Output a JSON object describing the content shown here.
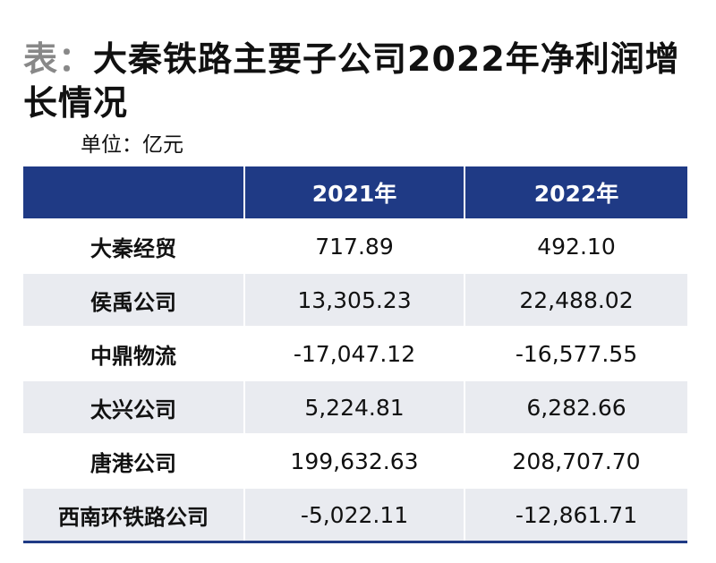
{
  "title": {
    "prefix": "表：",
    "text": "大秦铁路主要子公司2022年净利润增长情况"
  },
  "unit": "单位：亿元",
  "table": {
    "headers": [
      "",
      "2021年",
      "2022年"
    ],
    "rows": [
      {
        "name": "大秦经贸",
        "y2021": "717.89",
        "y2022": "492.10"
      },
      {
        "name": "侯禹公司",
        "y2021": "13,305.23",
        "y2022": "22,488.02"
      },
      {
        "name": "中鼎物流",
        "y2021": "-17,047.12",
        "y2022": "-16,577.55"
      },
      {
        "name": "太兴公司",
        "y2021": "5,224.81",
        "y2022": "6,282.66"
      },
      {
        "name": "唐港公司",
        "y2021": "199,632.63",
        "y2022": "208,707.70"
      },
      {
        "name": "西南环铁路公司",
        "y2021": "-5,022.11",
        "y2022": "-12,861.71"
      }
    ]
  },
  "colors": {
    "header_bg": "#1f3a85",
    "stripe_bg": "#e9ebf0",
    "prefix_gray": "#888888"
  }
}
